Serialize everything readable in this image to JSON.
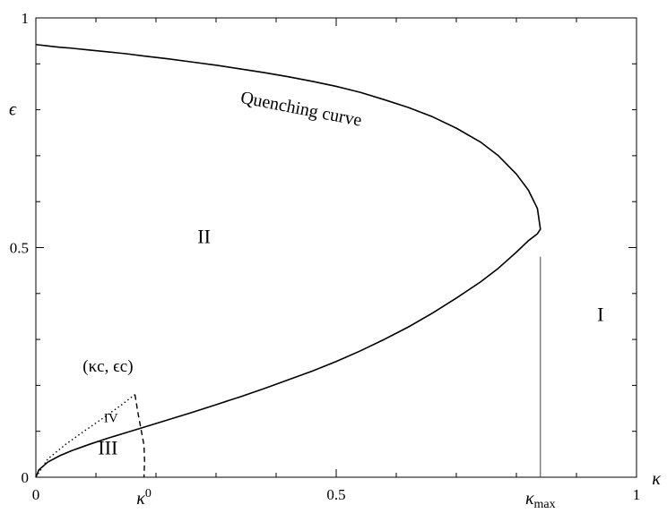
{
  "chart_data": {
    "type": "line",
    "title": "",
    "xlabel": "κ",
    "ylabel": "ϵ",
    "xlim": [
      0,
      1
    ],
    "ylim": [
      0,
      1
    ],
    "x_ticks": [
      {
        "value": 0,
        "label": "0"
      },
      {
        "value": 0.5,
        "label": "0.5"
      },
      {
        "value": 1,
        "label": "1"
      }
    ],
    "y_ticks": [
      {
        "value": 0,
        "label": "0"
      },
      {
        "value": 0.5,
        "label": "0.5"
      },
      {
        "value": 1,
        "label": "1"
      }
    ],
    "special_x_labels": [
      {
        "value": 0.18,
        "base": "κ",
        "sup": "0",
        "sub": ""
      },
      {
        "value": 0.84,
        "base": "κ",
        "sup": "",
        "sub": "max"
      }
    ],
    "series": [
      {
        "name": "Quenching curve",
        "style": "solid",
        "x": [
          0.0,
          0.005,
          0.02,
          0.04,
          0.06,
          0.09,
          0.12,
          0.15,
          0.18,
          0.22,
          0.26,
          0.3,
          0.34,
          0.38,
          0.42,
          0.46,
          0.5,
          0.54,
          0.58,
          0.62,
          0.66,
          0.7,
          0.74,
          0.77,
          0.8,
          0.82,
          0.835,
          0.84,
          0.835,
          0.82,
          0.8,
          0.77,
          0.74,
          0.7,
          0.66,
          0.62,
          0.58,
          0.54,
          0.5,
          0.46,
          0.42,
          0.38,
          0.34,
          0.3,
          0.26,
          0.22,
          0.18,
          0.15,
          0.12,
          0.09,
          0.06,
          0.04,
          0.02,
          0.0
        ],
        "y": [
          0.0,
          0.016,
          0.033,
          0.047,
          0.058,
          0.072,
          0.085,
          0.097,
          0.109,
          0.125,
          0.141,
          0.158,
          0.175,
          0.193,
          0.212,
          0.231,
          0.252,
          0.275,
          0.3,
          0.327,
          0.357,
          0.39,
          0.425,
          0.455,
          0.49,
          0.515,
          0.53,
          0.54,
          0.585,
          0.625,
          0.66,
          0.7,
          0.73,
          0.76,
          0.785,
          0.805,
          0.822,
          0.838,
          0.851,
          0.862,
          0.872,
          0.881,
          0.889,
          0.897,
          0.904,
          0.911,
          0.917,
          0.922,
          0.926,
          0.93,
          0.934,
          0.936,
          0.939,
          0.942
        ]
      },
      {
        "name": "",
        "style": "dotted",
        "x": [
          0.0,
          0.02,
          0.05,
          0.08,
          0.11,
          0.14,
          0.165
        ],
        "y": [
          0.0,
          0.04,
          0.072,
          0.1,
          0.127,
          0.155,
          0.18
        ]
      },
      {
        "name": "",
        "style": "dashed",
        "x": [
          0.165,
          0.17,
          0.175,
          0.18,
          0.181,
          0.18
        ],
        "y": [
          0.18,
          0.14,
          0.105,
          0.07,
          0.035,
          0.0
        ]
      },
      {
        "name": "",
        "style": "solid-thin",
        "x": [
          0.84,
          0.84
        ],
        "y": [
          0.0,
          0.48
        ]
      }
    ],
    "annotations": [
      {
        "text": "Quenching curve",
        "x": 0.44,
        "y": 0.79,
        "rotation": 11
      },
      {
        "text": "II",
        "x": 0.28,
        "y": 0.51
      },
      {
        "text": "I",
        "x": 0.94,
        "y": 0.34
      },
      {
        "text": "III",
        "x": 0.12,
        "y": 0.05
      },
      {
        "text": "IV",
        "x": 0.125,
        "y": 0.12
      },
      {
        "text": "(κc, ϵc)",
        "x": 0.12,
        "y": 0.23
      }
    ],
    "grid": false,
    "legend": "none"
  }
}
